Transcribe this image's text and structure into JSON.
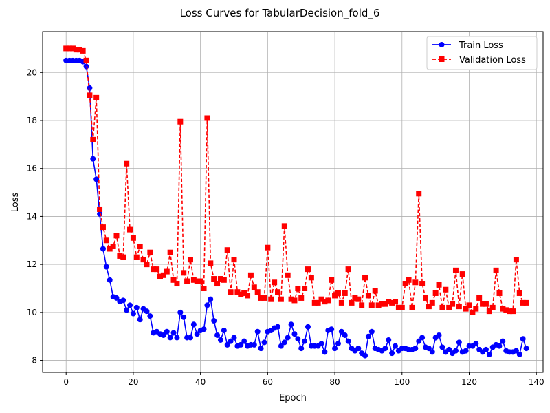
{
  "chart_data": {
    "type": "line",
    "title": "Loss Curves for TabularDecision_fold_6",
    "xlabel": "Epoch",
    "ylabel": "Loss",
    "xlim": [
      -7,
      142
    ],
    "ylim": [
      7.5,
      21.7
    ],
    "xticks": [
      0,
      20,
      40,
      60,
      80,
      100,
      120,
      140
    ],
    "yticks": [
      8,
      10,
      12,
      14,
      16,
      18,
      20
    ],
    "grid": true,
    "legend_position": "top-right",
    "series": [
      {
        "name": "Train Loss",
        "color": "#0000ff",
        "linestyle": "solid",
        "marker": "circle",
        "values": [
          20.5,
          20.5,
          20.5,
          20.5,
          20.5,
          20.45,
          20.25,
          19.35,
          16.4,
          15.55,
          14.1,
          12.65,
          11.9,
          11.35,
          10.65,
          10.6,
          10.45,
          10.5,
          10.1,
          10.3,
          9.95,
          10.2,
          9.7,
          10.15,
          10.05,
          9.85,
          9.15,
          9.2,
          9.1,
          9.05,
          9.2,
          8.95,
          9.15,
          8.95,
          10.0,
          9.8,
          8.95,
          8.95,
          9.5,
          9.1,
          9.25,
          9.3,
          10.3,
          10.55,
          9.65,
          9.05,
          8.85,
          9.25,
          8.65,
          8.8,
          8.95,
          8.6,
          8.65,
          8.8,
          8.6,
          8.65,
          8.65,
          9.2,
          8.5,
          8.75,
          9.2,
          9.25,
          9.35,
          9.4,
          8.6,
          8.75,
          8.95,
          9.5,
          9.1,
          8.9,
          8.5,
          8.8,
          9.4,
          8.6,
          8.6,
          8.6,
          8.7,
          8.35,
          9.25,
          9.3,
          8.5,
          8.7,
          9.2,
          9.05,
          8.8,
          8.5,
          8.4,
          8.5,
          8.3,
          8.2,
          9.0,
          9.2,
          8.5,
          8.45,
          8.4,
          8.5,
          8.85,
          8.3,
          8.6,
          8.4,
          8.5,
          8.5,
          8.45,
          8.45,
          8.5,
          8.8,
          8.95,
          8.55,
          8.5,
          8.35,
          8.95,
          9.05,
          8.55,
          8.35,
          8.45,
          8.3,
          8.4,
          8.75,
          8.35,
          8.4,
          8.6,
          8.6,
          8.7,
          8.45,
          8.35,
          8.45,
          8.25,
          8.55,
          8.65,
          8.6,
          8.8,
          8.4,
          8.35,
          8.35,
          8.4,
          8.25,
          8.9,
          8.5
        ]
      },
      {
        "name": "Validation Loss",
        "color": "#ff0000",
        "linestyle": "dashed",
        "marker": "square",
        "values": [
          21.0,
          21.0,
          21.0,
          20.95,
          20.95,
          20.9,
          20.5,
          19.05,
          17.2,
          18.95,
          14.3,
          13.55,
          13.0,
          12.65,
          12.75,
          13.2,
          12.35,
          12.3,
          16.2,
          13.45,
          13.1,
          12.3,
          12.75,
          12.2,
          12.0,
          12.5,
          11.8,
          11.8,
          11.5,
          11.55,
          11.7,
          12.5,
          11.35,
          11.2,
          17.95,
          11.65,
          11.3,
          12.2,
          11.35,
          11.3,
          11.3,
          11.0,
          18.1,
          12.05,
          11.4,
          11.2,
          11.4,
          11.35,
          12.6,
          10.85,
          12.2,
          10.85,
          10.75,
          10.8,
          10.7,
          11.55,
          11.05,
          10.85,
          10.6,
          10.6,
          12.7,
          10.55,
          11.25,
          10.85,
          10.55,
          13.6,
          11.55,
          10.55,
          10.5,
          11.0,
          10.6,
          11.0,
          11.8,
          11.45,
          10.4,
          10.4,
          10.55,
          10.45,
          10.5,
          11.35,
          10.7,
          10.8,
          10.4,
          10.8,
          11.8,
          10.4,
          10.6,
          10.55,
          10.3,
          11.45,
          10.7,
          10.3,
          10.9,
          10.3,
          10.35,
          10.35,
          10.45,
          10.4,
          10.45,
          10.2,
          10.2,
          11.2,
          11.35,
          10.2,
          11.25,
          14.95,
          11.2,
          10.6,
          10.25,
          10.4,
          10.8,
          11.15,
          10.2,
          10.95,
          10.2,
          10.35,
          11.75,
          10.25,
          11.6,
          10.15,
          10.3,
          10.0,
          10.15,
          10.6,
          10.35,
          10.35,
          10.05,
          10.2,
          11.75,
          10.8,
          10.15,
          10.1,
          10.05,
          10.05,
          12.2,
          10.8,
          10.4,
          10.4
        ]
      }
    ]
  }
}
